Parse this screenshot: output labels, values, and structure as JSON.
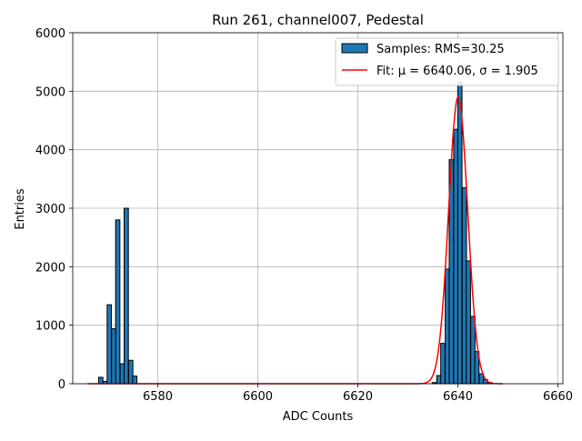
{
  "chart_data": {
    "type": "bar",
    "title": "Run 261, channel007, Pedestal",
    "xlabel": "ADC Counts",
    "ylabel": "Entries",
    "xlim": [
      6563,
      6661
    ],
    "ylim": [
      0,
      6000
    ],
    "xticks": [
      6580,
      6600,
      6620,
      6640,
      6660
    ],
    "yticks": [
      0,
      1000,
      2000,
      3000,
      4000,
      5000,
      6000
    ],
    "grid": true,
    "legend_position": "top-right",
    "bin_width": 0.853,
    "colors": {
      "bars": "#1f77b4",
      "bar_edge": "#000000",
      "fit": "#ff0000",
      "grid": "#b0b0b0"
    },
    "series": [
      {
        "name": "Samples: RMS=30.25",
        "kind": "histogram",
        "bins": [
          {
            "x": 6568.6,
            "y": 110
          },
          {
            "x": 6569.5,
            "y": 40
          },
          {
            "x": 6570.3,
            "y": 1350
          },
          {
            "x": 6571.2,
            "y": 940
          },
          {
            "x": 6572.0,
            "y": 2800
          },
          {
            "x": 6572.9,
            "y": 340
          },
          {
            "x": 6573.7,
            "y": 3000
          },
          {
            "x": 6574.6,
            "y": 400
          },
          {
            "x": 6575.4,
            "y": 130
          },
          {
            "x": 6635.3,
            "y": 20
          },
          {
            "x": 6636.2,
            "y": 140
          },
          {
            "x": 6637.0,
            "y": 690
          },
          {
            "x": 6637.9,
            "y": 1960
          },
          {
            "x": 6638.7,
            "y": 3830
          },
          {
            "x": 6639.6,
            "y": 4350
          },
          {
            "x": 6640.4,
            "y": 5150
          },
          {
            "x": 6641.3,
            "y": 3350
          },
          {
            "x": 6642.1,
            "y": 2100
          },
          {
            "x": 6643.0,
            "y": 1150
          },
          {
            "x": 6643.8,
            "y": 550
          },
          {
            "x": 6644.7,
            "y": 170
          },
          {
            "x": 6645.5,
            "y": 70
          },
          {
            "x": 6646.4,
            "y": 20
          }
        ]
      },
      {
        "name": "Fit: μ = 6640.06, σ = 1.905",
        "kind": "gaussian",
        "mu": 6640.06,
        "sigma": 1.905,
        "amplitude": 4900,
        "x_range": [
          6566,
          6649
        ]
      }
    ]
  }
}
